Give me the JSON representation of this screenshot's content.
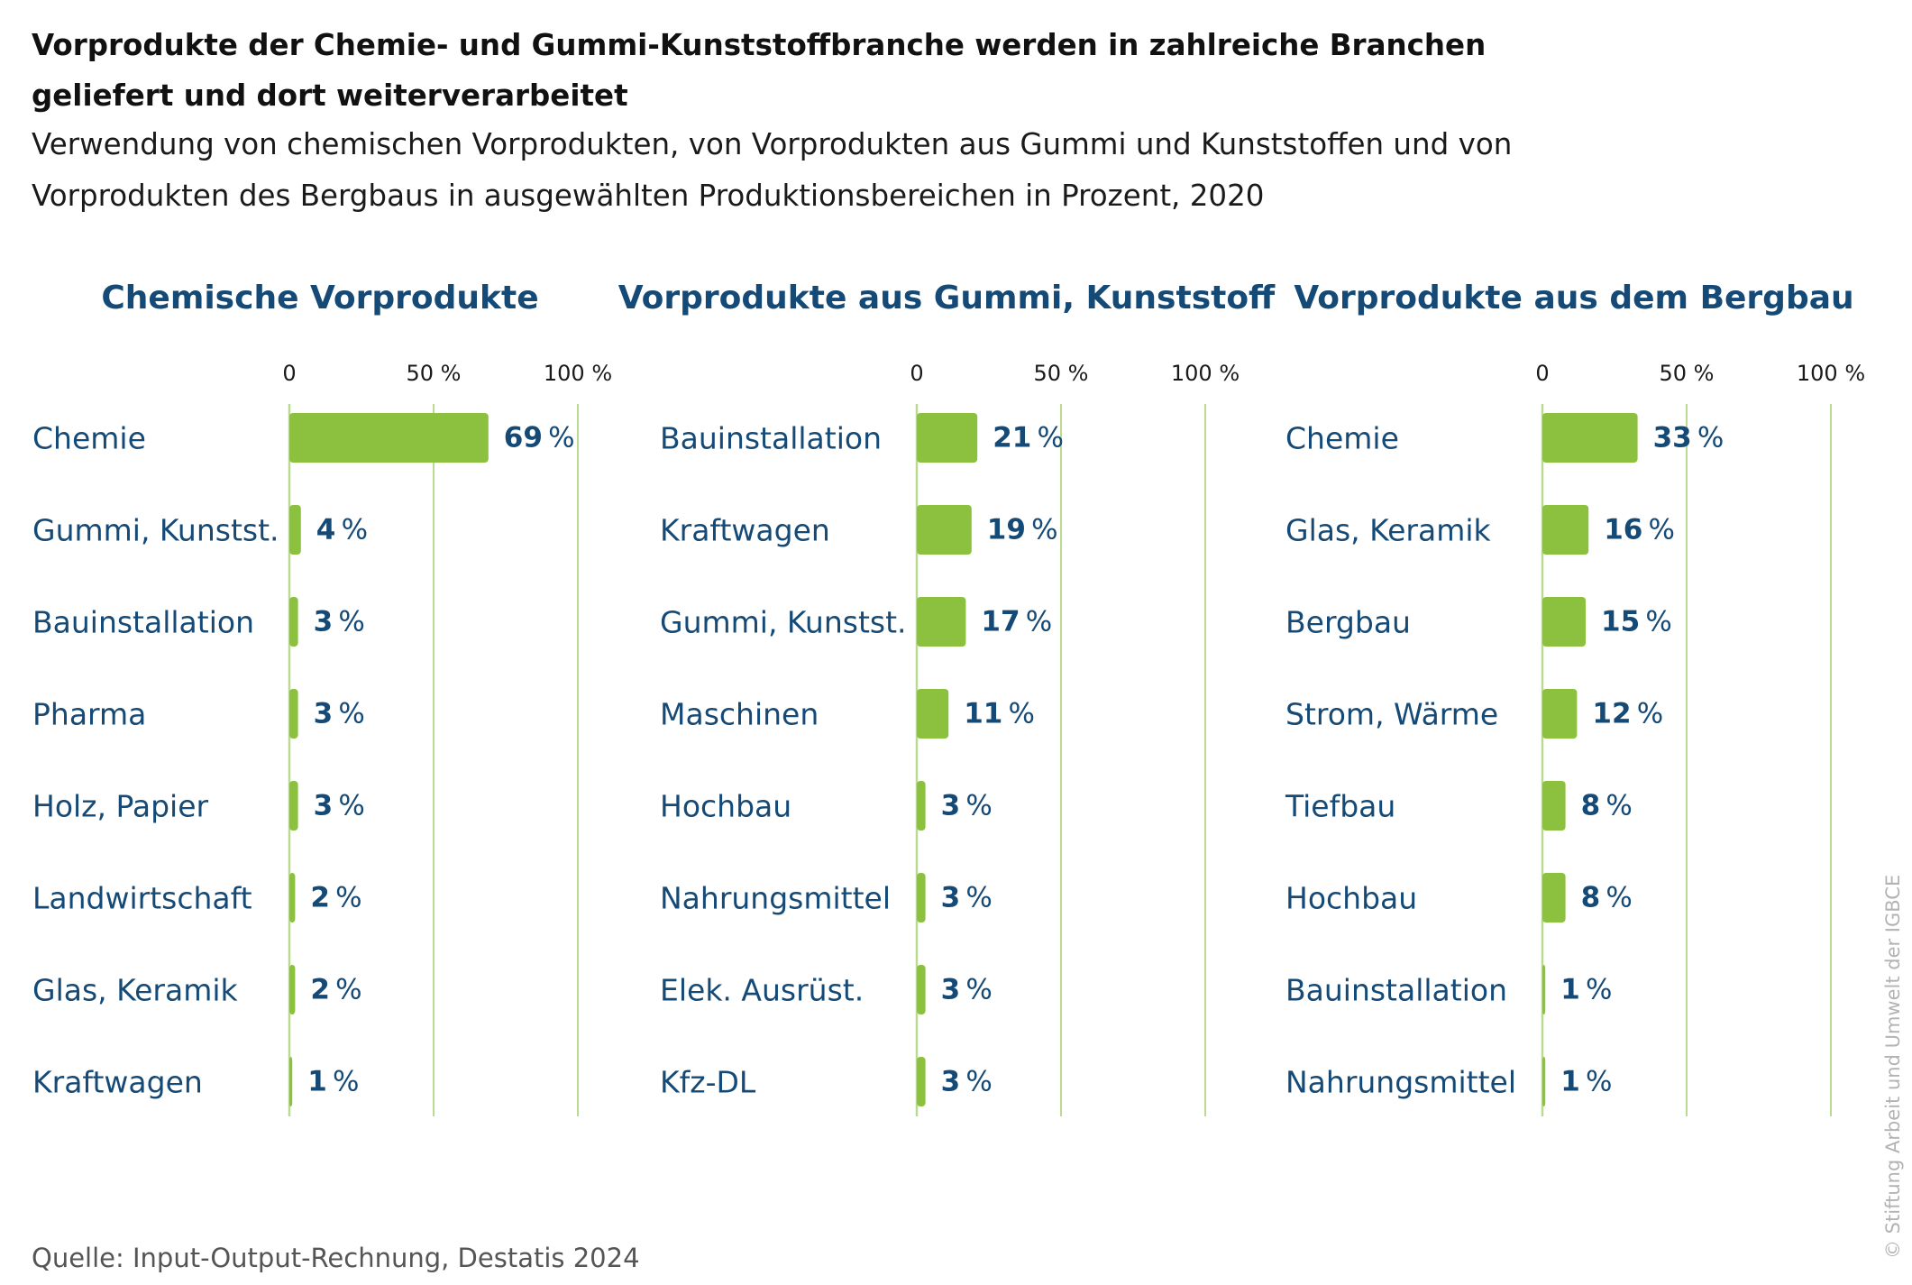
{
  "title": "Vorprodukte der Chemie- und Gummi-Kunststoffbranche werden in zahlreiche Branchen geliefert und dort weiterverarbeitet",
  "subtitle": "Verwendung von chemischen Vorprodukten, von Vorprodukten aus Gummi und Kunststoffen und von Vorprodukten des Bergbaus in ausgewählten Produktionsbereichen in Prozent, 2020",
  "source": "Quelle: Input-Output-Rechnung, Destatis 2024",
  "credit": "© Stiftung Arbeit und Umwelt der IGBCE",
  "colors": {
    "bar": "#8cc13f",
    "gridline": "#bcd991",
    "label": "#154a77"
  },
  "unit_suffix": "%",
  "chart_data": [
    {
      "type": "bar",
      "orientation": "horizontal",
      "title": "Chemische Vorprodukte",
      "xlim": [
        0,
        100
      ],
      "ticks": [
        0,
        50,
        100
      ],
      "tick_labels": [
        "0",
        "50 %",
        "100 %"
      ],
      "categories": [
        "Chemie",
        "Gummi, Kunstst.",
        "Bauinstallation",
        "Pharma",
        "Holz, Papier",
        "Landwirtschaft",
        "Glas, Keramik",
        "Kraftwagen"
      ],
      "values": [
        69,
        4,
        3,
        3,
        3,
        2,
        2,
        1
      ]
    },
    {
      "type": "bar",
      "orientation": "horizontal",
      "title": "Vorprodukte aus Gummi, Kunststoff",
      "xlim": [
        0,
        100
      ],
      "ticks": [
        0,
        50,
        100
      ],
      "tick_labels": [
        "0",
        "50 %",
        "100 %"
      ],
      "categories": [
        "Bauinstallation",
        "Kraftwagen",
        "Gummi, Kunstst.",
        "Maschinen",
        "Hochbau",
        "Nahrungsmittel",
        "Elek. Ausrüst.",
        "Kfz-DL"
      ],
      "values": [
        21,
        19,
        17,
        11,
        3,
        3,
        3,
        3
      ]
    },
    {
      "type": "bar",
      "orientation": "horizontal",
      "title": "Vorprodukte aus dem Bergbau",
      "xlim": [
        0,
        100
      ],
      "ticks": [
        0,
        50,
        100
      ],
      "tick_labels": [
        "0",
        "50 %",
        "100 %"
      ],
      "categories": [
        "Chemie",
        "Glas, Keramik",
        "Bergbau",
        "Strom, Wärme",
        "Tiefbau",
        "Hochbau",
        "Bauinstallation",
        "Nahrungsmittel"
      ],
      "values": [
        33,
        16,
        15,
        12,
        8,
        8,
        1,
        1
      ]
    }
  ]
}
